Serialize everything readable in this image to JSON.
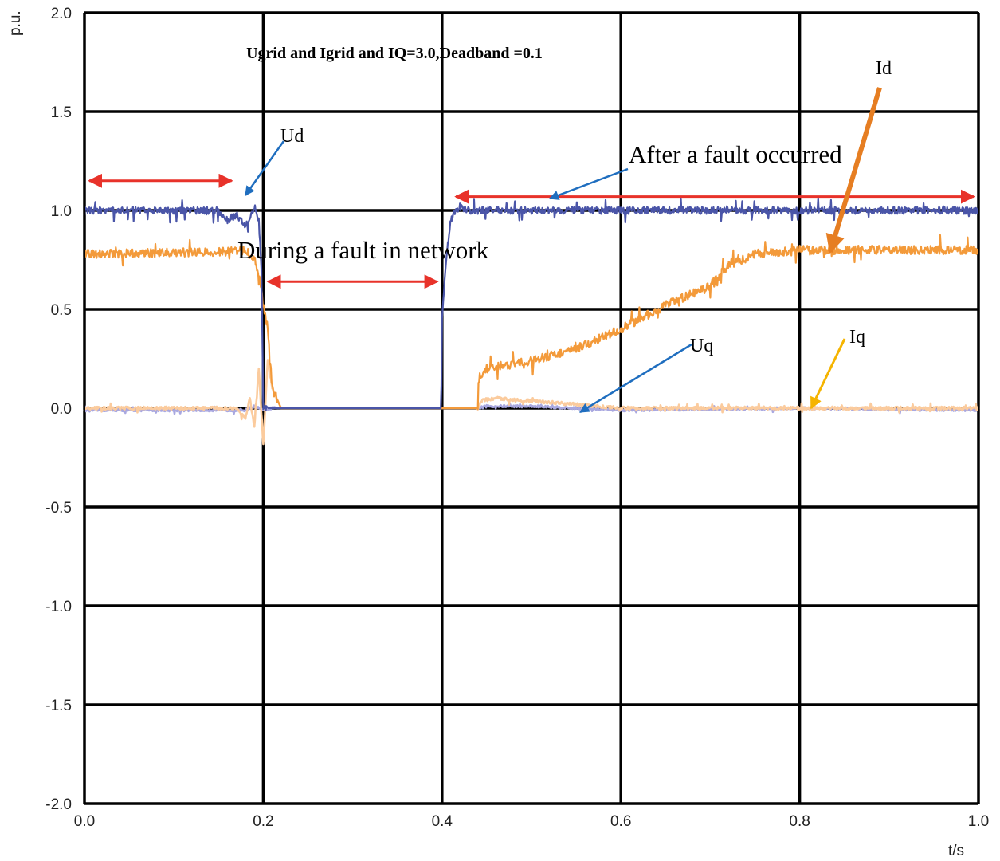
{
  "chart_data": {
    "type": "line",
    "title": "Ugrid and Igrid and IQ=3.0,Deadband =0.1",
    "xlabel": "t/s",
    "ylabel": "p.u.",
    "xlim": [
      0.0,
      1.0
    ],
    "ylim": [
      -2.0,
      2.0
    ],
    "x_ticks": [
      0.0,
      0.2,
      0.4,
      0.6,
      0.8,
      1.0
    ],
    "x_tick_labels": [
      "0.0",
      "0.2",
      "0.4",
      "0.6",
      "0.8",
      "1.0"
    ],
    "y_ticks": [
      2.0,
      1.5,
      1.0,
      0.5,
      0.0,
      -0.5,
      -1.0,
      -1.5,
      -2.0
    ],
    "y_tick_labels": [
      "2.0",
      "1.5",
      "1.0",
      "0.5",
      "0.0",
      "-0.5",
      "-1.0",
      "-1.5",
      "-2.0"
    ],
    "grid": true,
    "series": [
      {
        "name": "Ud",
        "color": "#4a55a8",
        "x": [
          0.0,
          0.15,
          0.16,
          0.17,
          0.18,
          0.19,
          0.195,
          0.198,
          0.2,
          0.21,
          0.3,
          0.399,
          0.4,
          0.402,
          0.405,
          0.408,
          0.41,
          0.415,
          0.42,
          0.43,
          0.45,
          0.5,
          0.6,
          0.7,
          0.8,
          0.9,
          1.0
        ],
        "values": [
          1.0,
          1.0,
          0.95,
          0.98,
          0.92,
          1.02,
          0.95,
          0.7,
          0.0,
          0.0,
          0.0,
          0.0,
          0.45,
          0.6,
          0.75,
          0.9,
          0.95,
          1.0,
          1.02,
          1.0,
          1.0,
          1.0,
          1.0,
          1.0,
          1.0,
          1.0,
          1.0
        ]
      },
      {
        "name": "Id",
        "color": "#f39a3a",
        "x": [
          0.0,
          0.15,
          0.18,
          0.19,
          0.195,
          0.2,
          0.205,
          0.21,
          0.22,
          0.3,
          0.4,
          0.44,
          0.441,
          0.45,
          0.5,
          0.55,
          0.6,
          0.65,
          0.7,
          0.72,
          0.75,
          0.8,
          0.9,
          1.0
        ],
        "values": [
          0.78,
          0.79,
          0.8,
          0.75,
          0.68,
          0.52,
          0.4,
          0.1,
          0.0,
          0.0,
          0.0,
          0.0,
          0.15,
          0.2,
          0.24,
          0.3,
          0.4,
          0.52,
          0.62,
          0.72,
          0.78,
          0.8,
          0.8,
          0.8
        ]
      },
      {
        "name": "Uq",
        "color": "#a9a8e0",
        "x": [
          0.0,
          0.18,
          0.19,
          0.2,
          0.21,
          0.3,
          0.44,
          0.45,
          0.5,
          0.55,
          0.6,
          0.8,
          1.0
        ],
        "values": [
          -0.01,
          -0.01,
          0.01,
          -0.01,
          0.0,
          0.0,
          0.0,
          0.01,
          0.01,
          0.0,
          -0.01,
          0.0,
          -0.01
        ]
      },
      {
        "name": "Iq",
        "color": "#fbcb9d",
        "x": [
          0.0,
          0.17,
          0.18,
          0.185,
          0.19,
          0.195,
          0.2,
          0.205,
          0.21,
          0.22,
          0.3,
          0.44,
          0.445,
          0.46,
          0.52,
          0.6,
          0.8,
          1.0
        ],
        "values": [
          0.0,
          0.0,
          -0.05,
          0.05,
          -0.1,
          0.2,
          -0.2,
          0.25,
          0.1,
          0.0,
          0.0,
          0.0,
          0.04,
          0.05,
          0.03,
          0.0,
          0.0,
          0.0
        ]
      }
    ],
    "annotations": [
      {
        "label": "Ud",
        "target": [
          0.182,
          1.06
        ],
        "color": "#1f6ebf"
      },
      {
        "label": "Id",
        "target": [
          0.83,
          0.79
        ],
        "color": "#e67e22"
      },
      {
        "label": "Uq",
        "target": [
          0.555,
          0.0
        ],
        "color": "#1f6ebf"
      },
      {
        "label": "Iq",
        "target": [
          0.81,
          0.0
        ],
        "color": "#f5b400"
      },
      {
        "label": "After a fault occurred",
        "target": [
          0.52,
          1.06
        ],
        "color": "#1f6ebf"
      },
      {
        "label": "During a fault in network"
      }
    ],
    "spans": [
      {
        "from": 0.0,
        "to": 0.17,
        "y": 1.15,
        "color": "#e8322a"
      },
      {
        "from": 0.2,
        "to": 0.4,
        "y": 0.64,
        "color": "#e8322a"
      },
      {
        "from": 0.41,
        "to": 1.0,
        "y": 1.07,
        "color": "#e8322a"
      }
    ]
  }
}
